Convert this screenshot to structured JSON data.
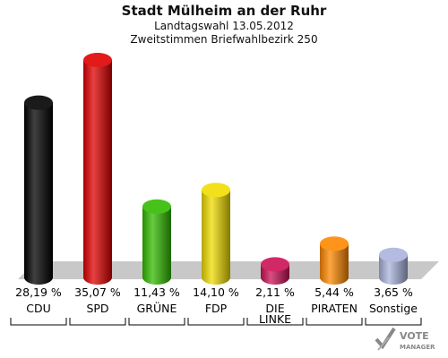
{
  "header": {
    "title": "Stadt Mülheim an der Ruhr",
    "subtitle1": "Landtagswahl 13.05.2012",
    "subtitle2": "Zweitstimmen Briefwahlbezirk 250"
  },
  "chart_data": {
    "type": "bar",
    "title": "Stadt Mülheim an der Ruhr",
    "subtitle": [
      "Landtagswahl 13.05.2012",
      "Zweitstimmen Briefwahlbezirk 250"
    ],
    "categories": [
      "CDU",
      "SPD",
      "GRÜNE",
      "FDP",
      "DIE LINKE",
      "PIRATEN",
      "Sonstige"
    ],
    "category_lines": [
      [
        "CDU"
      ],
      [
        "SPD"
      ],
      [
        "GRÜNE"
      ],
      [
        "FDP"
      ],
      [
        "DIE",
        "LINKE"
      ],
      [
        "PIRATEN"
      ],
      [
        "Sonstige"
      ]
    ],
    "values": [
      28.19,
      35.07,
      11.43,
      14.1,
      2.11,
      5.44,
      3.65
    ],
    "value_labels": [
      "28,19 %",
      "35,07 %",
      "11,43 %",
      "14,10 %",
      "2,11 %",
      "5,44 %",
      "3,65 %"
    ],
    "colors": [
      "#000000",
      "#e00000",
      "#33bb00",
      "#f0dc00",
      "#cc1155",
      "#ff8800",
      "#aab4dd"
    ],
    "ylim": [
      0,
      35.07
    ],
    "grid": false,
    "legend": "none",
    "xlabel": "",
    "ylabel": ""
  },
  "logo": {
    "text1": "VOTE",
    "text2": "MANAGER"
  }
}
